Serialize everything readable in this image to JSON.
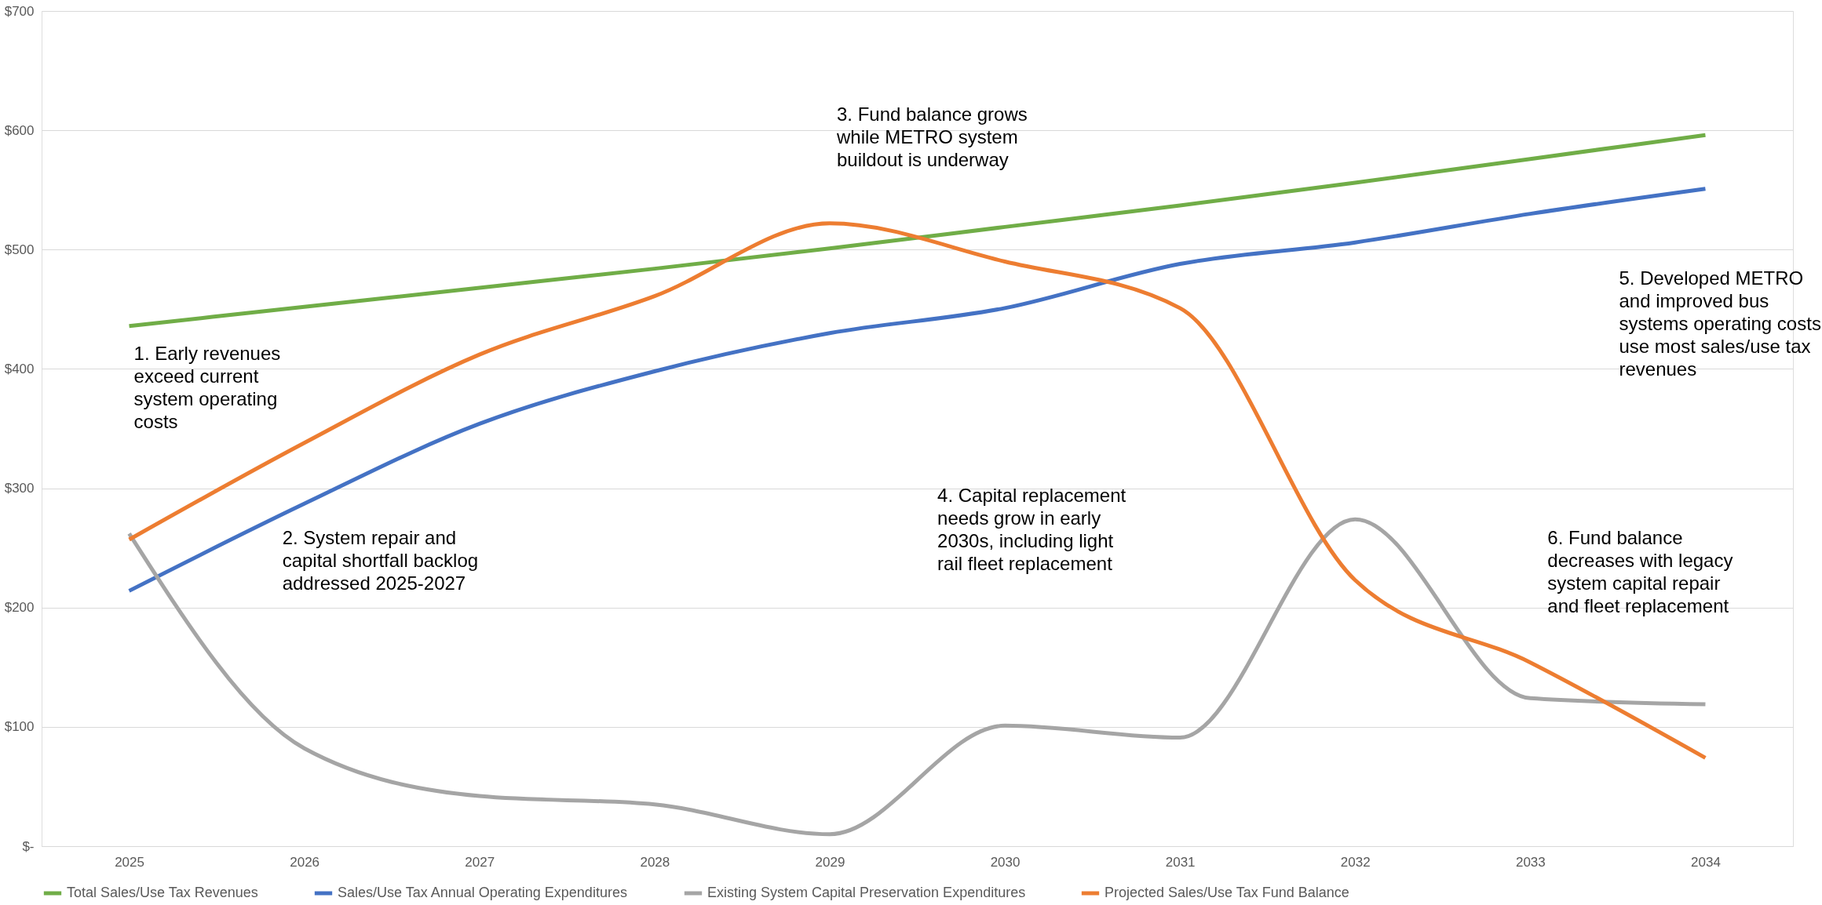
{
  "chart_data": {
    "type": "line",
    "categories": [
      "2025",
      "2026",
      "2027",
      "2028",
      "2029",
      "2030",
      "2031",
      "2032",
      "2033",
      "2034"
    ],
    "series": [
      {
        "name": "Total Sales/Use Tax Revenues",
        "color": "#70ad47",
        "values": [
          436,
          452,
          468,
          484,
          501,
          519,
          537,
          556,
          576,
          596
        ]
      },
      {
        "name": "Sales/Use Tax Annual Operating Expenditures",
        "color": "#4472c4",
        "values": [
          214,
          287,
          354,
          398,
          430,
          451,
          488,
          506,
          530,
          551
        ]
      },
      {
        "name": "Existing System Capital Preservation Expenditures",
        "color": "#a5a5a5",
        "values": [
          262,
          82,
          42,
          35,
          10,
          101,
          91,
          274,
          124,
          119
        ]
      },
      {
        "name": "Projected Sales/Use Tax Fund Balance",
        "color": "#ed7d31",
        "values": [
          257,
          338,
          412,
          461,
          522,
          490,
          451,
          223,
          154,
          74
        ]
      }
    ],
    "ylim": [
      0,
      700
    ],
    "yticks": [
      {
        "value": 0,
        "label": "$-"
      },
      {
        "value": 100,
        "label": "$100"
      },
      {
        "value": 200,
        "label": "$200"
      },
      {
        "value": 300,
        "label": "$300"
      },
      {
        "value": 400,
        "label": "$400"
      },
      {
        "value": 500,
        "label": "$500"
      },
      {
        "value": 600,
        "label": "$600"
      },
      {
        "value": 700,
        "label": "$700"
      }
    ],
    "grid": "y",
    "legend": "bottom",
    "marker": "none",
    "line_style": "solid",
    "annotations": [
      "1. Early revenues\nexceed current\nsystem operating\ncosts",
      "2. System repair and\ncapital shortfall backlog\naddressed 2025-2027",
      "3. Fund balance grows\nwhile METRO system\nbuildout is underway",
      "4. Capital replacement\nneeds grow in early\n2030s, including light\nrail fleet replacement",
      "5. Developed METRO\nand improved bus\nsystems operating costs\nuse most sales/use tax\nrevenues",
      "6. Fund balance\ndecreases with legacy\nsystem capital repair\nand fleet replacement"
    ]
  }
}
